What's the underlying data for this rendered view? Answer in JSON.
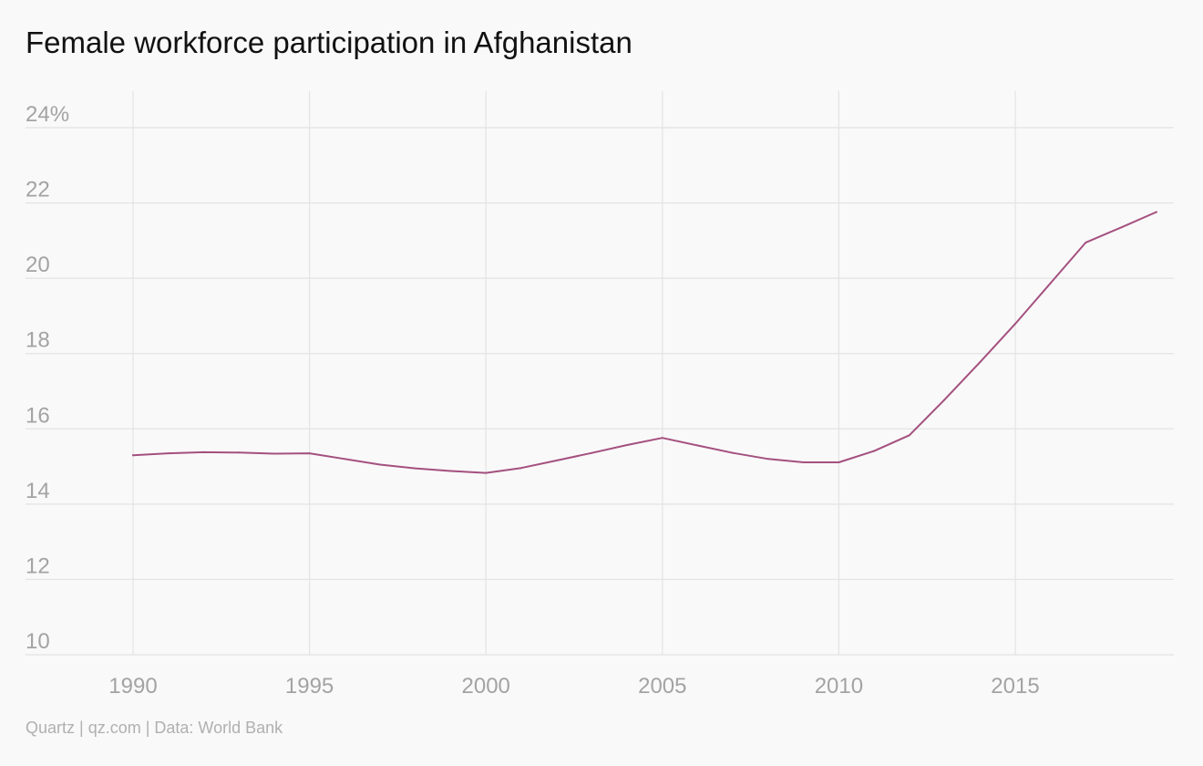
{
  "title": "Female workforce participation in Afghanistan",
  "footer": "Quartz | qz.com | Data: World Bank",
  "colors": {
    "line": "#a4507f",
    "grid": "#e3e3e3",
    "tick_text": "#a3a3a3",
    "background": "#f9f9f9"
  },
  "chart_data": {
    "type": "line",
    "title": "Female workforce participation in Afghanistan",
    "xlabel": "",
    "ylabel": "",
    "xlim": [
      1987,
      2020
    ],
    "ylim": [
      10,
      24
    ],
    "grid": true,
    "x_ticks": [
      1990,
      1995,
      2000,
      2005,
      2010,
      2015
    ],
    "x_tick_labels": [
      "1990",
      "1995",
      "2000",
      "2005",
      "2010",
      "2015"
    ],
    "y_ticks": [
      10,
      12,
      14,
      16,
      18,
      20,
      22,
      24
    ],
    "y_tick_labels": [
      "10",
      "12",
      "14",
      "16",
      "18",
      "20",
      "22",
      "24%"
    ],
    "series": [
      {
        "x": [
          1990,
          1991,
          1992,
          1993,
          1994,
          1995,
          1996,
          1997,
          1998,
          1999,
          2000,
          2001,
          2002,
          2003,
          2004,
          2005,
          2006,
          2007,
          2008,
          2009,
          2010,
          2011,
          2012,
          2013,
          2014,
          2015,
          2016,
          2017,
          2018,
          2019
        ],
        "values": [
          15.3,
          15.35,
          15.38,
          15.37,
          15.34,
          15.35,
          15.2,
          15.05,
          14.95,
          14.88,
          14.83,
          14.96,
          15.16,
          15.36,
          15.57,
          15.76,
          15.56,
          15.36,
          15.2,
          15.11,
          15.11,
          15.41,
          15.83,
          16.78,
          17.77,
          18.79,
          19.87,
          20.95,
          21.35,
          21.76
        ]
      }
    ]
  }
}
